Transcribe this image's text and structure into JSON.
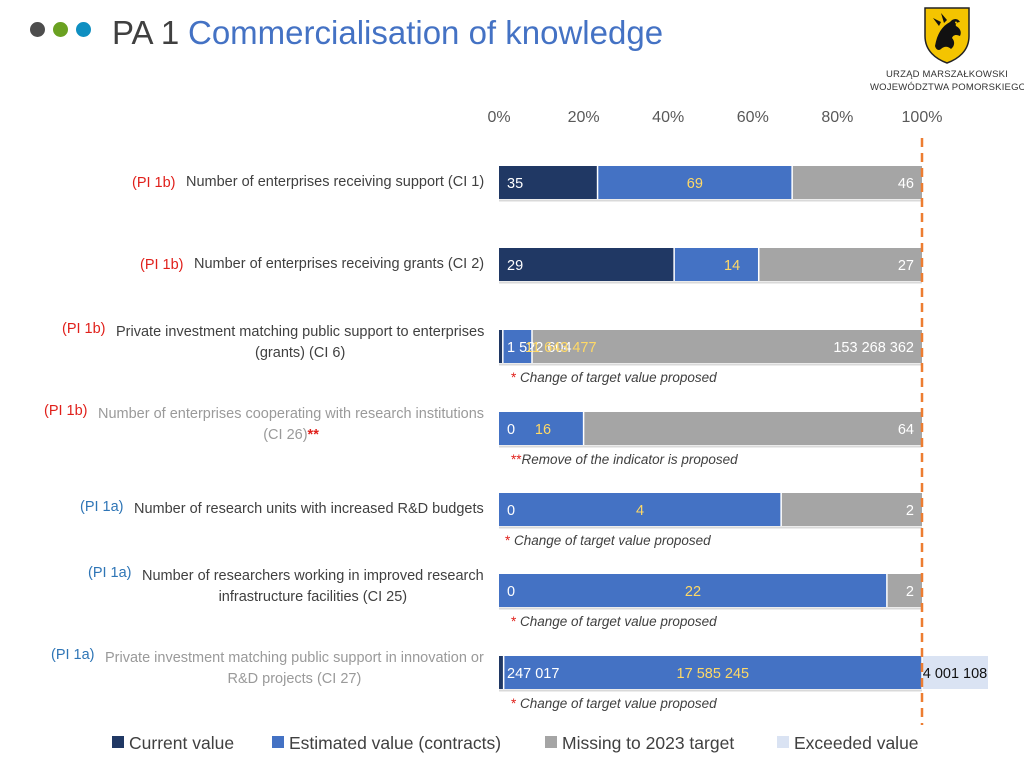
{
  "header": {
    "title_prefix": "PA 1",
    "title_main": "Commercialisation of knowledge",
    "dots": [
      "#4d4d4d",
      "#6aa121",
      "#0f8fc1"
    ],
    "logo_line1": "URZĄD MARSZAŁKOWSKI",
    "logo_line2": "WOJEWÓDZTWA POMORSKIEGO"
  },
  "chart_data": {
    "type": "bar",
    "orientation": "horizontal",
    "stacked": true,
    "scale": "percent of 2023 target",
    "x_ticks": [
      "0%",
      "20%",
      "40%",
      "60%",
      "80%",
      "100%"
    ],
    "xlim": [
      0,
      100
    ],
    "target_line": 100,
    "legend_position": "bottom",
    "series": [
      {
        "name": "Current value",
        "color": "#203864"
      },
      {
        "name": "Estimated value (contracts)",
        "color": "#4472c4"
      },
      {
        "name": "Missing to 2023 target",
        "color": "#a5a5a5"
      },
      {
        "name": "Exceeded value",
        "color": "#dae3f3"
      }
    ],
    "rows": [
      {
        "tag": "(PI 1b)",
        "tag_color": "red",
        "label": [
          "Number of enterprises receiving support (CI 1)"
        ],
        "dim": false,
        "stars": "",
        "pct": [
          23.3,
          46,
          30.7,
          0
        ],
        "values": [
          "35",
          "69",
          "46",
          ""
        ],
        "note": ""
      },
      {
        "tag": "(PI 1b)",
        "tag_color": "red",
        "label": [
          "Number of enterprises receiving grants (CI 2)"
        ],
        "dim": false,
        "stars": "",
        "pct": [
          41.4,
          20,
          38.6,
          0
        ],
        "values": [
          "29",
          "14",
          "27",
          ""
        ],
        "note": ""
      },
      {
        "tag": "(PI 1b)",
        "tag_color": "red",
        "label": [
          "Private investment matching public support to enterprises",
          "(grants) (CI 6)"
        ],
        "dim": false,
        "stars": "",
        "pct": [
          0.9,
          6.9,
          92.2,
          0
        ],
        "values": [
          "1 522 604",
          "11 643 477",
          "153 268 362",
          ""
        ],
        "note": "Change of target value proposed",
        "note_marker": "*"
      },
      {
        "tag": "(PI 1b)",
        "tag_color": "red",
        "label": [
          "Number of enterprises cooperating with research institutions",
          "(CI 26)"
        ],
        "dim": true,
        "stars": "**",
        "pct": [
          0,
          20,
          80,
          0
        ],
        "values": [
          "0",
          "16",
          "64",
          ""
        ],
        "note": "Remove of the indicator is proposed",
        "note_marker": "**"
      },
      {
        "tag": "(PI 1a)",
        "tag_color": "blue",
        "label": [
          "Number of research units with increased R&D budgets"
        ],
        "dim": false,
        "stars": "",
        "pct": [
          0,
          66.7,
          33.3,
          0
        ],
        "values": [
          "0",
          "4",
          "2",
          ""
        ],
        "note": "Change of target value proposed",
        "note_marker": "*"
      },
      {
        "tag": "(PI 1a)",
        "tag_color": "blue",
        "label": [
          "Number of researchers working in improved research",
          "infrastructure facilities (CI 25)"
        ],
        "dim": false,
        "stars": "",
        "pct": [
          0,
          91.7,
          8.3,
          0
        ],
        "values": [
          "0",
          "22",
          "2",
          ""
        ],
        "note": "Change of target value proposed",
        "note_marker": "*"
      },
      {
        "tag": "(PI 1a)",
        "tag_color": "blue",
        "label": [
          "Private investment matching public support in innovation or",
          "R&D projects  (CI 27)"
        ],
        "dim": true,
        "stars": "",
        "pct": [
          1.1,
          98.9,
          0,
          15.6
        ],
        "values": [
          "247 017",
          "17 585 245",
          "",
          "4 001 108"
        ],
        "note": "Change of target value proposed",
        "note_marker": "*"
      }
    ]
  }
}
